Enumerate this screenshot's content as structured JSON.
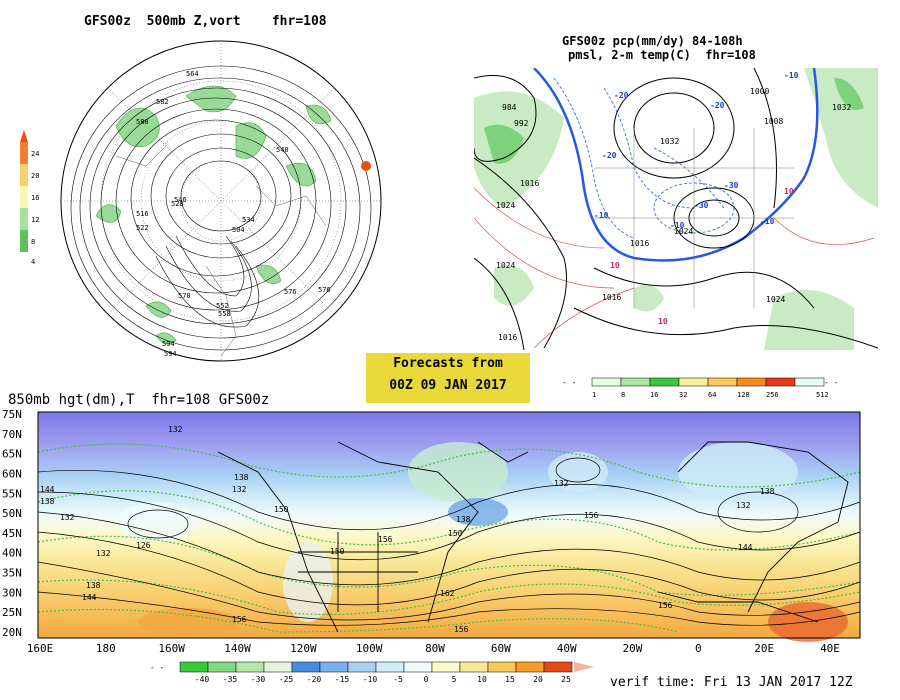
{
  "panel_500mb": {
    "title": "GFS00z  500mb Z,vort    fhr=108",
    "legend_values": [
      "24",
      "20",
      "16",
      "12",
      "8",
      "4"
    ],
    "contour_labels": [
      "564",
      "582",
      "540",
      "588",
      "546",
      "516",
      "522",
      "528",
      "504",
      "534",
      "570",
      "576",
      "576",
      "552",
      "558",
      "594",
      "594"
    ]
  },
  "panel_pcp": {
    "title_line1": "GFS00z pcp(mm/dy) 84-108h",
    "title_line2": "pmsl, 2-m temp(C)  fhr=108",
    "isobar_labels": [
      "984",
      "992",
      "1016",
      "1024",
      "1024",
      "1032",
      "1016",
      "1024",
      "1016",
      "1016",
      "1024",
      "1032",
      "1000",
      "1008"
    ],
    "temp_labels": [
      "-20",
      "-20",
      "-30",
      "-10",
      "10",
      "10",
      "10",
      "-10",
      "-20",
      "-30",
      "-10",
      "-10"
    ],
    "legend_values": [
      "1",
      "8",
      "16",
      "32",
      "64",
      "128",
      "256",
      "512"
    ],
    "legend_colors": [
      "#e6ffe6",
      "#a8e8a0",
      "#3cc83c",
      "#f8f098",
      "#f8c858",
      "#f88c18",
      "#e83818",
      "#e8fbf8"
    ]
  },
  "forecast_box": {
    "line1": "Forecasts from",
    "line2": "00Z 09 JAN 2017"
  },
  "panel_850mb": {
    "title": "850mb hgt(dm),T  fhr=108 GFS00z",
    "lat_labels": [
      "75N",
      "70N",
      "65N",
      "60N",
      "55N",
      "50N",
      "45N",
      "40N",
      "35N",
      "30N",
      "25N",
      "20N"
    ],
    "lon_labels": [
      "160E",
      "180",
      "160W",
      "140W",
      "120W",
      "100W",
      "80W",
      "60W",
      "40W",
      "20W",
      "0",
      "20E",
      "40E"
    ],
    "height_labels": [
      "144",
      "138",
      "132",
      "126",
      "132",
      "138",
      "144",
      "156",
      "138",
      "132",
      "150",
      "150",
      "156",
      "150",
      "138",
      "162",
      "156",
      "132",
      "156",
      "138",
      "132",
      "144",
      "156",
      "132"
    ],
    "temp_legend_values": [
      "-40",
      "-35",
      "-30",
      "-25",
      "-20",
      "-15",
      "-10",
      "-5",
      "0",
      "5",
      "10",
      "15",
      "20",
      "25"
    ],
    "temp_legend_colors": [
      "#3cc83c",
      "#82d882",
      "#b4e8a8",
      "#e4f4dc",
      "#4a8ce0",
      "#7ab0ec",
      "#a8d0f4",
      "#d0ecf8",
      "#f0fcfc",
      "#fcf8c8",
      "#f8e898",
      "#f8c858",
      "#f89c28",
      "#e84818"
    ]
  },
  "verif_time": "verif time: Fri 13 JAN 2017 12Z"
}
